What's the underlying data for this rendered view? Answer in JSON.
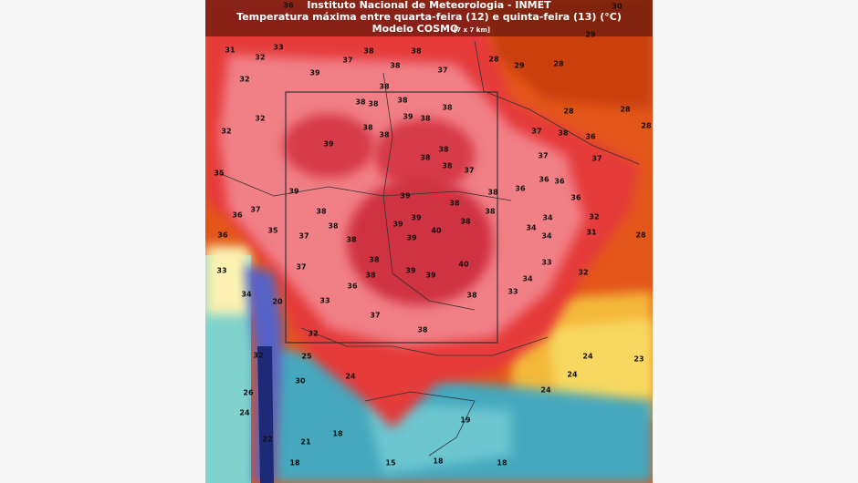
{
  "header": {
    "institute": "Instituto Nacional de Meteorologia - INMET",
    "subtitle": "Temperatura máxima entre quarta-feira (12) e quinta-feira (13) (°C)",
    "model": "Modelo COSMO",
    "resolution": "[7 x 7 km]"
  },
  "labels": [
    "36",
    "30",
    "29",
    "31",
    "33",
    "32",
    "37",
    "38",
    "38",
    "37",
    "28",
    "29",
    "28",
    "39",
    "32",
    "38",
    "38",
    "38",
    "38",
    "38",
    "32",
    "39",
    "38",
    "38",
    "32",
    "38",
    "38",
    "37",
    "38",
    "36",
    "28",
    "28",
    "28",
    "39",
    "38",
    "38",
    "37",
    "37",
    "38",
    "37",
    "35",
    "36",
    "36",
    "39",
    "39",
    "38",
    "36",
    "36",
    "38",
    "38",
    "37",
    "38",
    "36",
    "38",
    "39",
    "38",
    "34",
    "32",
    "39",
    "40",
    "34",
    "35",
    "37",
    "39",
    "38",
    "34",
    "31",
    "28",
    "36",
    "38",
    "40",
    "33",
    "37",
    "33",
    "38",
    "39",
    "39",
    "34",
    "32",
    "36",
    "34",
    "20",
    "33",
    "33",
    "38",
    "37",
    "38",
    "32",
    "25",
    "24",
    "23",
    "32",
    "24",
    "24",
    "30",
    "26",
    "24",
    "24",
    "19",
    "18",
    "22",
    "21",
    "15",
    "18",
    "18",
    "18"
  ]
}
